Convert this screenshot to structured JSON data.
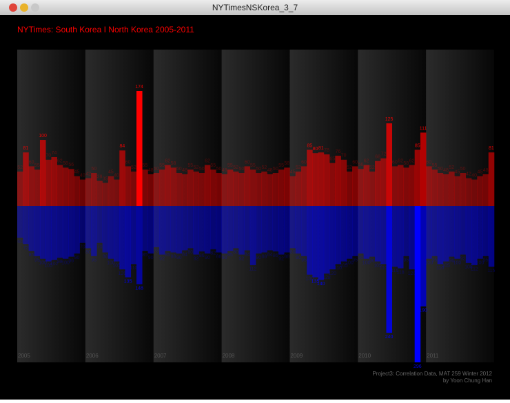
{
  "window_title": "NYTimesNSKorea_3_7",
  "chart_data": {
    "type": "diverging-bar",
    "title": "NYTimes: South Korea I North Korea 2005-2011",
    "years": [
      "2005",
      "2006",
      "2007",
      "2008",
      "2009",
      "2010",
      "2011"
    ],
    "series": [
      {
        "color": "#ff0000",
        "direction": "up",
        "values": [
          52,
          81,
          60,
          55,
          100,
          70,
          74,
          62,
          58,
          56,
          45,
          40,
          42,
          50,
          38,
          35,
          45,
          40,
          84,
          60,
          52,
          174,
          55,
          48,
          50,
          55,
          62,
          58,
          50,
          48,
          55,
          52,
          50,
          62,
          55,
          50,
          48,
          55,
          52,
          50,
          60,
          55,
          50,
          52,
          48,
          50,
          55,
          58,
          45,
          52,
          60,
          85,
          80,
          81,
          78,
          65,
          76,
          70,
          52,
          60,
          56,
          62,
          52,
          68,
          72,
          125,
          60,
          62,
          58,
          62,
          85,
          111,
          60,
          55,
          50,
          48,
          52,
          45,
          50,
          42,
          40,
          45,
          48,
          81
        ]
      },
      {
        "color": "#0000ff",
        "direction": "down",
        "values": [
          60,
          72,
          85,
          95,
          100,
          105,
          102,
          98,
          100,
          96,
          90,
          70,
          80,
          95,
          70,
          88,
          100,
          105,
          120,
          135,
          110,
          148,
          85,
          90,
          78,
          92,
          85,
          88,
          90,
          84,
          80,
          92,
          86,
          90,
          82,
          88,
          90,
          85,
          80,
          92,
          84,
          112,
          90,
          88,
          84,
          86,
          92,
          88,
          80,
          90,
          95,
          130,
          135,
          140,
          128,
          120,
          110,
          105,
          100,
          95,
          90,
          100,
          96,
          105,
          110,
          240,
          115,
          118,
          95,
          120,
          296,
          190,
          100,
          95,
          110,
          105,
          96,
          100,
          92,
          108,
          112,
          100,
          95,
          115
        ]
      }
    ],
    "credits": [
      "Project3: Correlation Data, MAT 259 Winter 2012",
      "by Yoon Chung Han"
    ]
  }
}
